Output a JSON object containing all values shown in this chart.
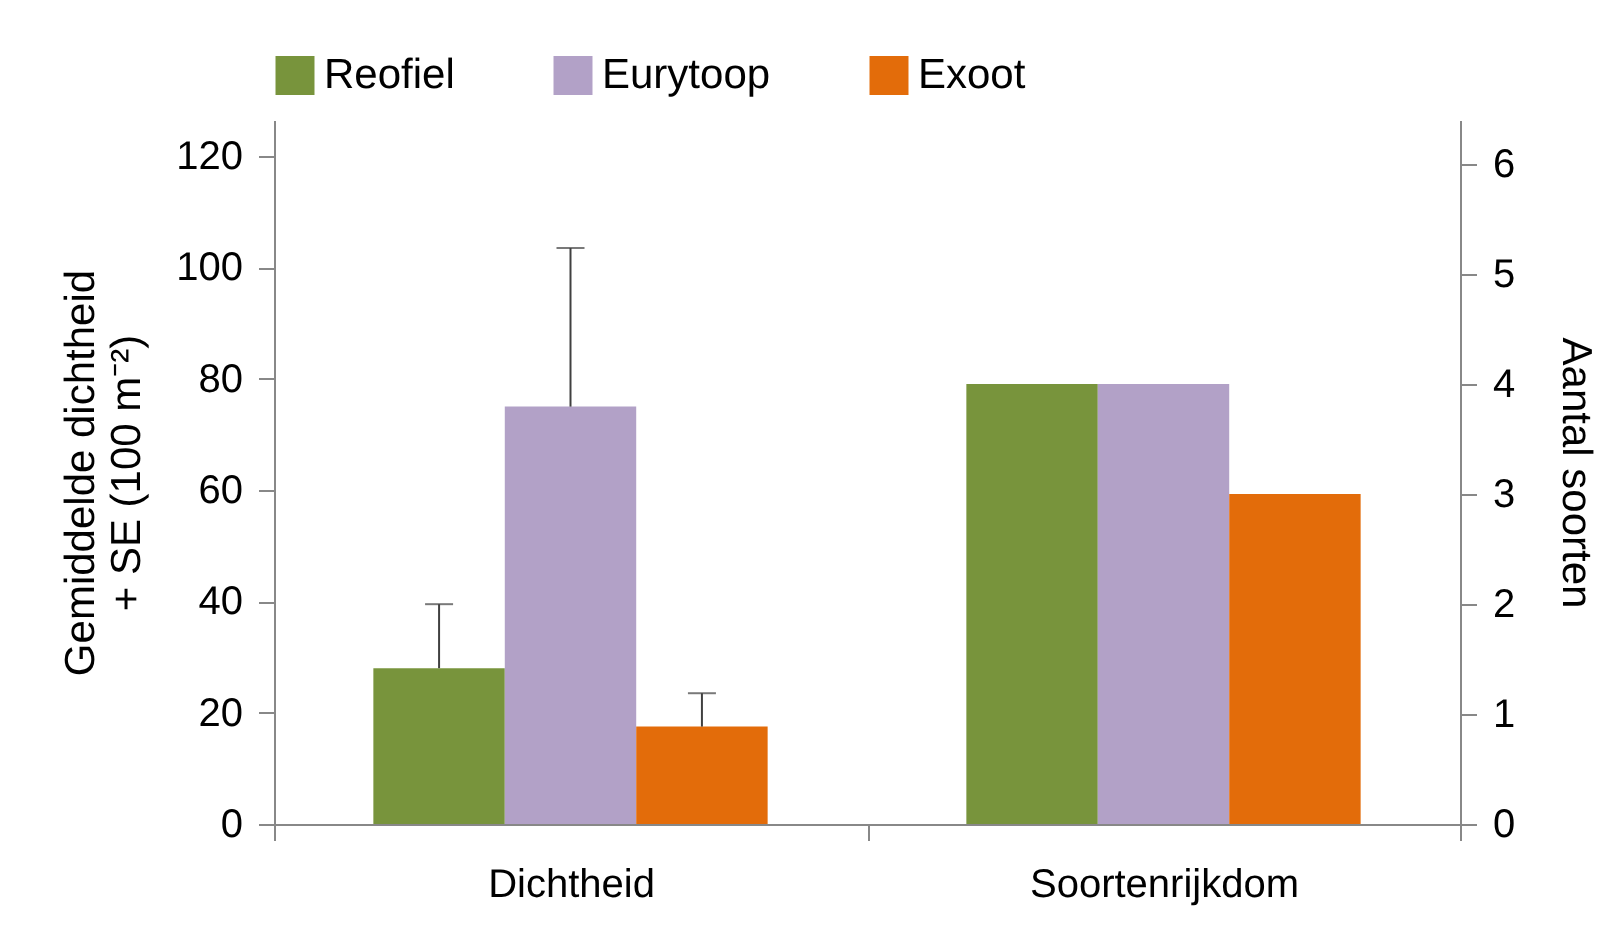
{
  "chart_data": {
    "type": "bar",
    "categories": [
      "Dichtheid",
      "Soortenrijkdom"
    ],
    "ylabel": "Gemiddelde dichtheid\n+ SE (100 m⁻²)",
    "y2label": "Aantal soorten",
    "ylim": [
      0,
      126.5
    ],
    "yticks": [
      0,
      20,
      40,
      60,
      80,
      100,
      120
    ],
    "y2lim": [
      0,
      6.4
    ],
    "y2ticks": [
      0,
      1,
      2,
      3,
      4,
      5,
      6
    ],
    "legend": "top",
    "grid": false,
    "series": [
      {
        "name": "Reofiel",
        "color": "#78943c",
        "values": [
          28,
          null
        ],
        "errors": [
          [
            28,
            39.5
          ],
          null
        ]
      },
      {
        "name": "Eurytoop",
        "color": "#b2a1c7",
        "values": [
          75,
          null
        ],
        "errors": [
          [
            75,
            103.5
          ],
          null
        ]
      },
      {
        "name": "Exoot",
        "color": "#e36c0a",
        "values": [
          17.5,
          null
        ],
        "errors": [
          [
            17.5,
            23.5
          ],
          null
        ]
      },
      {
        "color": "#78943c",
        "values": [
          null,
          4
        ],
        "axis": "y2"
      },
      {
        "color": "#b2a1c7",
        "values": [
          null,
          4
        ],
        "axis": "y2"
      },
      {
        "color": "#e36c0a",
        "values": [
          null,
          3
        ],
        "axis": "y2"
      }
    ]
  }
}
